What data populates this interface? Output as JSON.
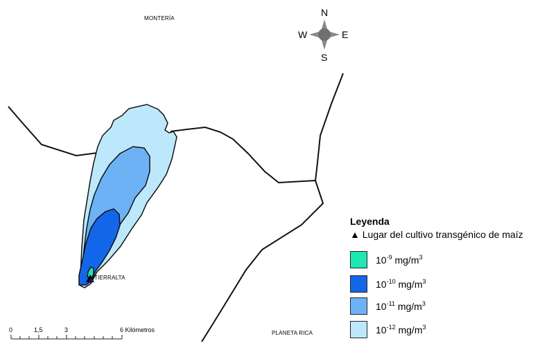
{
  "map": {
    "towns": {
      "top": "MONTERÍA",
      "center": "TIERRALTA",
      "bottom": "PLANETA RICA"
    },
    "compass": {
      "n": "N",
      "s": "S",
      "e": "E",
      "w": "W"
    },
    "scale_bar": {
      "labels": [
        "0",
        "1,5",
        "3",
        "6"
      ],
      "unit": "Kilómetros"
    }
  },
  "legend": {
    "title": "Leyenda",
    "site_symbol": "▲",
    "site_label": "Lugar del cultivo transgénico de maíz",
    "items": [
      {
        "base": "10",
        "exponent": "-9",
        "unit": "mg/m",
        "unit_exp": "3",
        "color": "#1ee8b4"
      },
      {
        "base": "10",
        "exponent": "-10",
        "unit": "mg/m",
        "unit_exp": "3",
        "color": "#1466e8"
      },
      {
        "base": "10",
        "exponent": "-11",
        "unit": "mg/m",
        "unit_exp": "3",
        "color": "#6eb2f6"
      },
      {
        "base": "10",
        "exponent": "-12",
        "unit": "mg/m",
        "unit_exp": "3",
        "color": "#bde8fb"
      }
    ]
  }
}
